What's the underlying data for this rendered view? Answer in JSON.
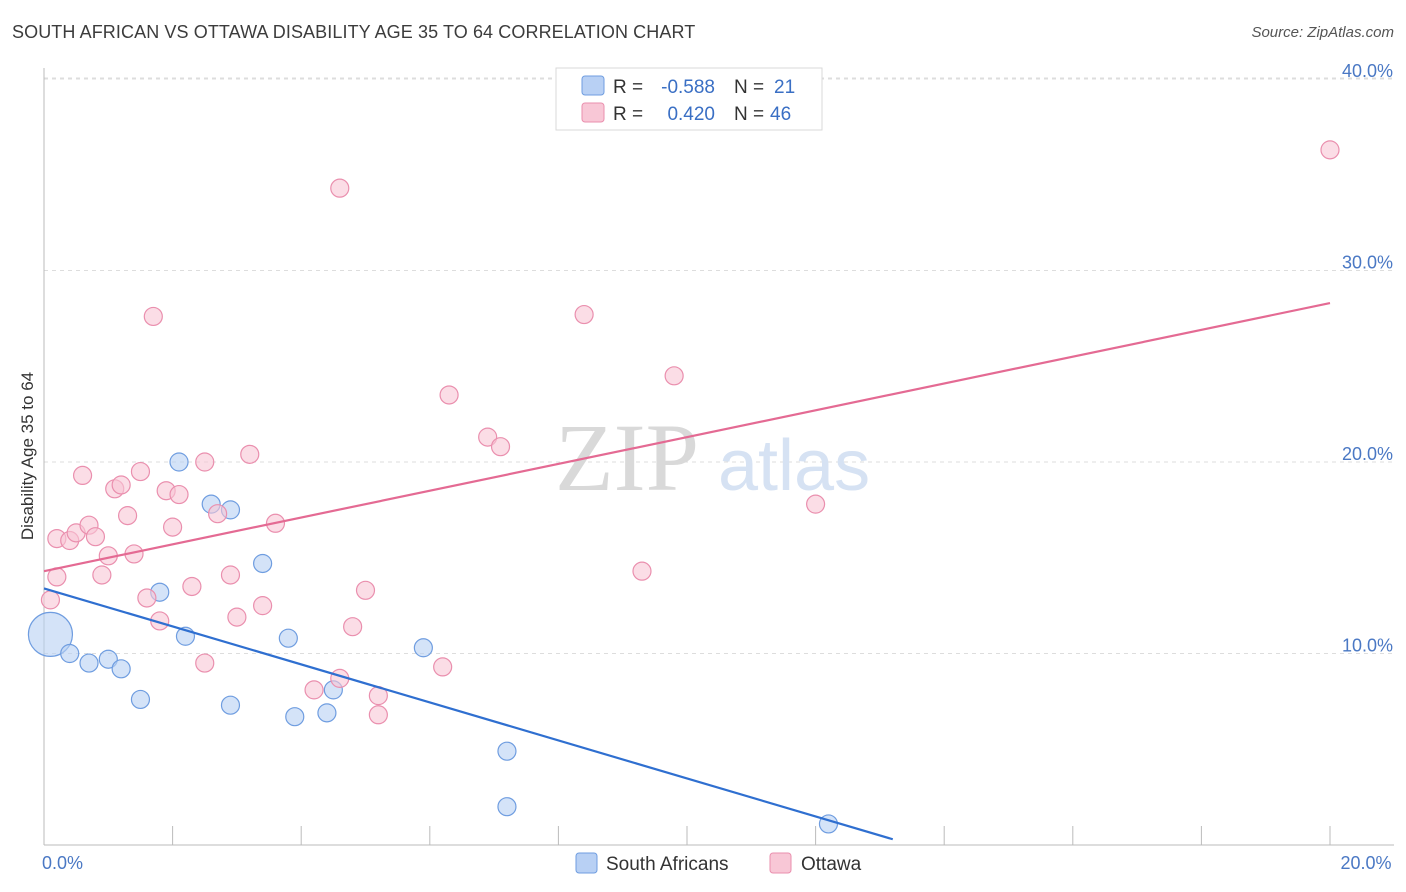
{
  "title": "SOUTH AFRICAN VS OTTAWA DISABILITY AGE 35 TO 64 CORRELATION CHART",
  "source": "Source: ZipAtlas.com",
  "watermark": {
    "zip": "ZIP",
    "atlas": "atlas"
  },
  "colors": {
    "blue_fill": "#b8d0f4",
    "blue_stroke": "#6f9de0",
    "blue_line": "#2f6fd0",
    "pink_fill": "#f8c7d6",
    "pink_stroke": "#ea8fae",
    "pink_line": "#e46a93",
    "grid": "#dddddd",
    "tick_text": "#4a78c4"
  },
  "chart_data": {
    "type": "scatter",
    "xlabel": "",
    "ylabel": "Disability Age 35 to 64",
    "xlim": [
      0,
      21
    ],
    "ylim": [
      0,
      41
    ],
    "x_tick_labels": [
      {
        "value": 0,
        "label": "0.0%"
      },
      {
        "value": 20,
        "label": "20.0%"
      }
    ],
    "x_ticks": [
      0,
      2,
      4,
      6,
      8,
      10,
      12,
      14,
      16,
      18,
      20
    ],
    "y_ticks": [
      {
        "value": 10,
        "label": "10.0%"
      },
      {
        "value": 20,
        "label": "20.0%"
      },
      {
        "value": 30,
        "label": "30.0%"
      },
      {
        "value": 40,
        "label": "40.0%"
      }
    ],
    "legend": {
      "rows": [
        {
          "r_label": "R =",
          "r_value": "-0.588",
          "n_label": "N =",
          "n_value": "21",
          "series": "blue"
        },
        {
          "r_label": "R =",
          "r_value": "0.420",
          "n_label": "N =",
          "n_value": "46",
          "series": "pink"
        }
      ]
    },
    "series": [
      {
        "name": "South Africans",
        "color_key": "blue",
        "points": [
          [
            0.1,
            11.0,
            22
          ],
          [
            0.4,
            10.0,
            9
          ],
          [
            0.7,
            9.5,
            9
          ],
          [
            1.0,
            9.7,
            9
          ],
          [
            1.2,
            9.2,
            9
          ],
          [
            1.5,
            7.6,
            9
          ],
          [
            1.8,
            13.2,
            9
          ],
          [
            2.1,
            20.0,
            9
          ],
          [
            2.2,
            10.9,
            9
          ],
          [
            2.6,
            17.8,
            9
          ],
          [
            2.9,
            7.3,
            9
          ],
          [
            2.9,
            17.5,
            9
          ],
          [
            3.4,
            14.7,
            9
          ],
          [
            3.8,
            10.8,
            9
          ],
          [
            3.9,
            6.7,
            9
          ],
          [
            4.4,
            6.9,
            9
          ],
          [
            4.5,
            8.1,
            9
          ],
          [
            5.9,
            10.3,
            9
          ],
          [
            7.2,
            4.9,
            9
          ],
          [
            7.2,
            2.0,
            9
          ],
          [
            12.2,
            1.1,
            9
          ]
        ],
        "trend": {
          "x0": 0,
          "y0": 13.4,
          "x1": 13.2,
          "y1": 0.3
        }
      },
      {
        "name": "Ottawa",
        "color_key": "pink",
        "points": [
          [
            0.1,
            12.8,
            9
          ],
          [
            0.2,
            14.0,
            9
          ],
          [
            0.2,
            16.0,
            9
          ],
          [
            0.4,
            15.9,
            9
          ],
          [
            0.5,
            16.3,
            9
          ],
          [
            0.6,
            19.3,
            9
          ],
          [
            0.7,
            16.7,
            9
          ],
          [
            0.8,
            16.1,
            9
          ],
          [
            0.9,
            14.1,
            9
          ],
          [
            1.0,
            15.1,
            9
          ],
          [
            1.1,
            18.6,
            9
          ],
          [
            1.2,
            18.8,
            9
          ],
          [
            1.3,
            17.2,
            9
          ],
          [
            1.4,
            15.2,
            9
          ],
          [
            1.5,
            19.5,
            9
          ],
          [
            1.6,
            12.9,
            9
          ],
          [
            1.7,
            27.6,
            9
          ],
          [
            1.8,
            11.7,
            9
          ],
          [
            1.9,
            18.5,
            9
          ],
          [
            2.0,
            16.6,
            9
          ],
          [
            2.1,
            18.3,
            9
          ],
          [
            2.3,
            13.5,
            9
          ],
          [
            2.5,
            9.5,
            9
          ],
          [
            2.5,
            20.0,
            9
          ],
          [
            2.7,
            17.3,
            9
          ],
          [
            2.9,
            14.1,
            9
          ],
          [
            3.0,
            11.9,
            9
          ],
          [
            3.2,
            20.4,
            9
          ],
          [
            3.4,
            12.5,
            9
          ],
          [
            3.6,
            16.8,
            9
          ],
          [
            4.2,
            8.1,
            9
          ],
          [
            4.6,
            8.7,
            9
          ],
          [
            4.6,
            34.3,
            9
          ],
          [
            4.8,
            11.4,
            9
          ],
          [
            5.0,
            13.3,
            9
          ],
          [
            5.2,
            7.8,
            9
          ],
          [
            5.2,
            6.8,
            9
          ],
          [
            6.2,
            9.3,
            9
          ],
          [
            6.3,
            23.5,
            9
          ],
          [
            6.9,
            21.3,
            9
          ],
          [
            7.1,
            20.8,
            9
          ],
          [
            8.4,
            27.7,
            9
          ],
          [
            9.3,
            14.3,
            9
          ],
          [
            9.8,
            24.5,
            9
          ],
          [
            12.0,
            17.8,
            9
          ],
          [
            20.0,
            36.3,
            9
          ]
        ],
        "trend": {
          "x0": 0,
          "y0": 14.3,
          "x1": 20.0,
          "y1": 28.3
        }
      }
    ]
  }
}
